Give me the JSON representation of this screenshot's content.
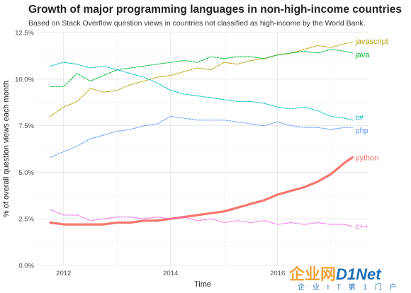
{
  "chart_data": {
    "type": "line",
    "title": "Growth of major programming languages in non-high-income countries",
    "subtitle": "Based on Stack Overflow question views in countries not classified as high-income by the World Bank.",
    "xlabel": "Time",
    "ylabel": "% of overall question views each month",
    "xlim": [
      2011.5,
      2017.7
    ],
    "ylim": [
      0,
      12.5
    ],
    "x_ticks": [
      {
        "value": 2012,
        "label": "2012"
      },
      {
        "value": 2014,
        "label": "2014"
      },
      {
        "value": 2016,
        "label": "2016"
      }
    ],
    "y_ticks": [
      {
        "value": 0,
        "label": "0.0%"
      },
      {
        "value": 2.5,
        "label": "2.5%"
      },
      {
        "value": 5,
        "label": "5.0%"
      },
      {
        "value": 7.5,
        "label": "7.5%"
      },
      {
        "value": 10,
        "label": "10.0%"
      },
      {
        "value": 12.5,
        "label": "12.5%"
      }
    ],
    "legend": "direct-labels-right",
    "grid": true,
    "series": [
      {
        "name": "javascript",
        "color": "#b79f00",
        "style": "dashed",
        "x": [
          2011.75,
          2012.0,
          2012.25,
          2012.5,
          2012.75,
          2013.0,
          2013.25,
          2013.5,
          2013.75,
          2014.0,
          2014.25,
          2014.5,
          2014.75,
          2015.0,
          2015.25,
          2015.5,
          2015.75,
          2016.0,
          2016.25,
          2016.5,
          2016.75,
          2017.0,
          2017.25,
          2017.4
        ],
        "y": [
          8.0,
          8.5,
          8.8,
          9.5,
          9.3,
          9.4,
          9.7,
          9.9,
          10.1,
          10.2,
          10.4,
          10.6,
          10.5,
          10.9,
          10.8,
          11.0,
          11.1,
          11.3,
          11.4,
          11.6,
          11.8,
          11.7,
          11.9,
          12.0
        ]
      },
      {
        "name": "java",
        "color": "#00ba38",
        "style": "dashed",
        "x": [
          2011.75,
          2012.0,
          2012.25,
          2012.5,
          2012.75,
          2013.0,
          2013.25,
          2013.5,
          2013.75,
          2014.0,
          2014.25,
          2014.5,
          2014.75,
          2015.0,
          2015.25,
          2015.5,
          2015.75,
          2016.0,
          2016.25,
          2016.5,
          2016.75,
          2017.0,
          2017.25,
          2017.4
        ],
        "y": [
          9.6,
          9.6,
          10.3,
          9.9,
          10.2,
          10.5,
          10.6,
          10.7,
          10.8,
          10.9,
          11.0,
          10.9,
          11.2,
          11.1,
          11.2,
          11.2,
          11.1,
          11.3,
          11.4,
          11.5,
          11.4,
          11.6,
          11.5,
          11.4
        ]
      },
      {
        "name": "c#",
        "color": "#00bfc4",
        "style": "dashed",
        "x": [
          2011.75,
          2012.0,
          2012.25,
          2012.5,
          2012.75,
          2013.0,
          2013.25,
          2013.5,
          2013.75,
          2014.0,
          2014.25,
          2014.5,
          2014.75,
          2015.0,
          2015.25,
          2015.5,
          2015.75,
          2016.0,
          2016.25,
          2016.5,
          2016.75,
          2017.0,
          2017.25,
          2017.4
        ],
        "y": [
          10.7,
          10.9,
          10.8,
          10.6,
          10.7,
          10.5,
          10.3,
          10.1,
          9.8,
          9.4,
          9.2,
          9.1,
          9.0,
          8.9,
          8.8,
          8.8,
          8.7,
          8.5,
          8.4,
          8.5,
          8.3,
          8.0,
          7.9,
          7.8
        ]
      },
      {
        "name": "php",
        "color": "#619cff",
        "style": "dashed",
        "x": [
          2011.75,
          2012.0,
          2012.25,
          2012.5,
          2012.75,
          2013.0,
          2013.25,
          2013.5,
          2013.75,
          2014.0,
          2014.25,
          2014.5,
          2014.75,
          2015.0,
          2015.25,
          2015.5,
          2015.75,
          2016.0,
          2016.25,
          2016.5,
          2016.75,
          2017.0,
          2017.25,
          2017.4
        ],
        "y": [
          5.8,
          6.1,
          6.4,
          6.8,
          7.0,
          7.2,
          7.3,
          7.5,
          7.6,
          8.0,
          7.9,
          7.8,
          7.8,
          7.8,
          7.7,
          7.6,
          7.5,
          7.7,
          7.5,
          7.4,
          7.4,
          7.3,
          7.4,
          7.4
        ]
      },
      {
        "name": "python",
        "color": "#f8766d",
        "style": "solid",
        "x": [
          2011.75,
          2012.0,
          2012.25,
          2012.5,
          2012.75,
          2013.0,
          2013.25,
          2013.5,
          2013.75,
          2014.0,
          2014.25,
          2014.5,
          2014.75,
          2015.0,
          2015.25,
          2015.5,
          2015.75,
          2016.0,
          2016.25,
          2016.5,
          2016.75,
          2017.0,
          2017.25,
          2017.4
        ],
        "y": [
          2.3,
          2.2,
          2.2,
          2.2,
          2.2,
          2.3,
          2.3,
          2.4,
          2.4,
          2.5,
          2.6,
          2.7,
          2.8,
          2.9,
          3.1,
          3.3,
          3.5,
          3.8,
          4.0,
          4.2,
          4.5,
          4.9,
          5.5,
          5.8
        ]
      },
      {
        "name": "c++",
        "color": "#f564e3",
        "style": "dashed",
        "x": [
          2011.75,
          2012.0,
          2012.25,
          2012.5,
          2012.75,
          2013.0,
          2013.25,
          2013.5,
          2013.75,
          2014.0,
          2014.25,
          2014.5,
          2014.75,
          2015.0,
          2015.25,
          2015.5,
          2015.75,
          2016.0,
          2016.25,
          2016.5,
          2016.75,
          2017.0,
          2017.25,
          2017.4
        ],
        "y": [
          3.0,
          2.7,
          2.7,
          2.4,
          2.5,
          2.6,
          2.6,
          2.5,
          2.6,
          2.5,
          2.6,
          2.4,
          2.5,
          2.3,
          2.4,
          2.3,
          2.4,
          2.2,
          2.3,
          2.2,
          2.3,
          2.2,
          2.2,
          2.1
        ]
      }
    ]
  },
  "watermark": {
    "cn": "企业网",
    "en": "D1Net",
    "sub": "企 业 I T 第 1 门 户"
  }
}
